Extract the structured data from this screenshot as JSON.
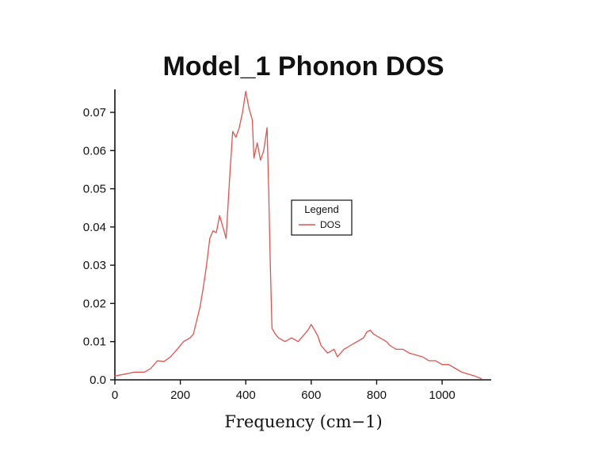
{
  "chart_data": {
    "type": "line",
    "title": "Model_1 Phonon DOS",
    "xlabel": "Frequency (cm−1)",
    "ylabel": "",
    "xlim": [
      0,
      1150
    ],
    "ylim": [
      0,
      0.076
    ],
    "grid": false,
    "x_ticks": [
      0,
      200,
      400,
      600,
      800,
      1000
    ],
    "x_tick_labels": [
      "0",
      "200",
      "400",
      "600",
      "800",
      "1000"
    ],
    "y_ticks": [
      0,
      0.01,
      0.02,
      0.03,
      0.04,
      0.05,
      0.06,
      0.07
    ],
    "y_tick_labels": [
      "0.0",
      "0.01",
      "0.02",
      "0.03",
      "0.04",
      "0.05",
      "0.06",
      "0.07"
    ],
    "legend": {
      "title": "Legend",
      "position": "center-right-of-plot",
      "entries": [
        {
          "label": "DOS",
          "color": "#e0534e"
        }
      ]
    },
    "series": [
      {
        "name": "DOS",
        "color": "#e0534e",
        "x": [
          0,
          30,
          60,
          90,
          110,
          130,
          150,
          170,
          190,
          210,
          230,
          240,
          260,
          270,
          280,
          290,
          300,
          310,
          320,
          330,
          340,
          350,
          360,
          370,
          380,
          390,
          400,
          410,
          420,
          425,
          435,
          445,
          455,
          465,
          470,
          475,
          480,
          490,
          500,
          510,
          520,
          530,
          540,
          550,
          560,
          570,
          580,
          590,
          600,
          610,
          620,
          630,
          640,
          650,
          660,
          670,
          680,
          690,
          700,
          710,
          720,
          730,
          740,
          750,
          760,
          770,
          780,
          790,
          800,
          810,
          820,
          830,
          840,
          850,
          860,
          880,
          900,
          920,
          940,
          960,
          980,
          1000,
          1020,
          1040,
          1060,
          1080,
          1100,
          1120
        ],
        "y": [
          0.001,
          0.0015,
          0.002,
          0.002,
          0.003,
          0.005,
          0.0048,
          0.006,
          0.008,
          0.01,
          0.011,
          0.012,
          0.019,
          0.024,
          0.03,
          0.037,
          0.039,
          0.0385,
          0.043,
          0.04,
          0.037,
          0.052,
          0.065,
          0.0635,
          0.066,
          0.07,
          0.0755,
          0.071,
          0.068,
          0.058,
          0.062,
          0.0575,
          0.06,
          0.066,
          0.05,
          0.03,
          0.0135,
          0.012,
          0.011,
          0.0105,
          0.01,
          0.0105,
          0.011,
          0.0105,
          0.01,
          0.011,
          0.012,
          0.013,
          0.0145,
          0.013,
          0.0115,
          0.009,
          0.008,
          0.007,
          0.0075,
          0.008,
          0.006,
          0.007,
          0.008,
          0.0085,
          0.009,
          0.0095,
          0.01,
          0.0105,
          0.011,
          0.0125,
          0.013,
          0.012,
          0.0115,
          0.011,
          0.0105,
          0.01,
          0.009,
          0.0085,
          0.008,
          0.008,
          0.007,
          0.0065,
          0.006,
          0.005,
          0.005,
          0.004,
          0.004,
          0.003,
          0.002,
          0.0015,
          0.001,
          0.0003
        ]
      }
    ]
  }
}
